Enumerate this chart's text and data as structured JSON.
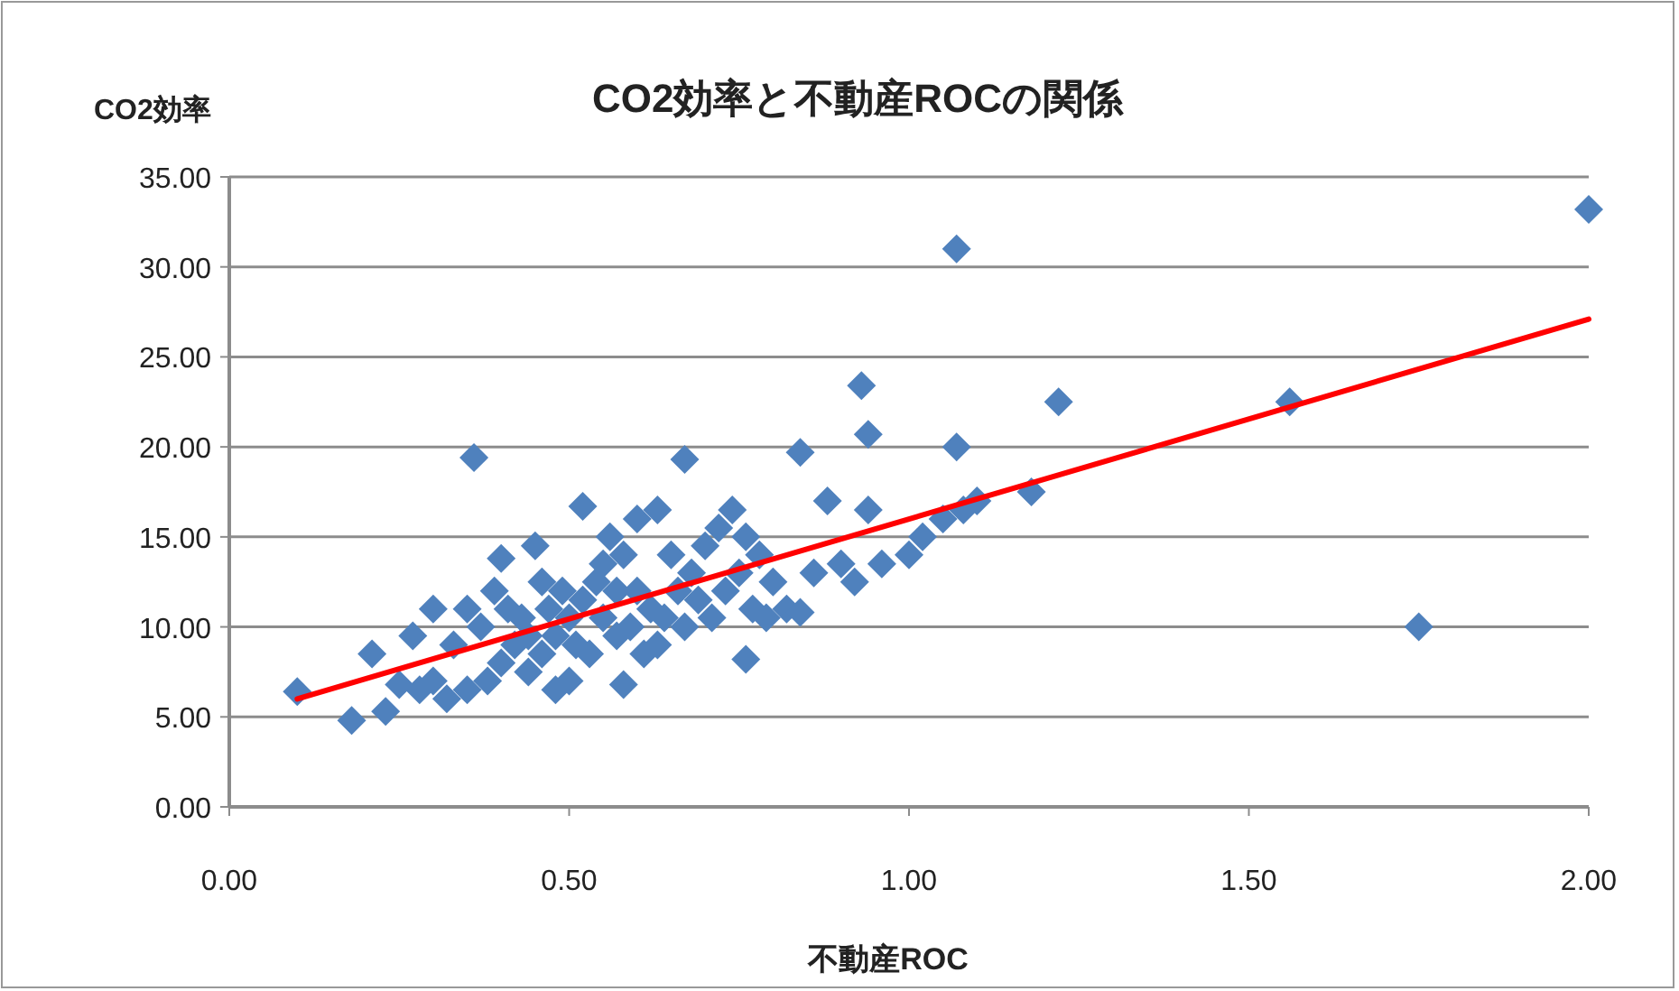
{
  "chart_data": {
    "type": "scatter",
    "title": "CO2効率と不動産ROCの関係",
    "xlabel": "不動産ROC",
    "ylabel": "CO2効率",
    "xlim": [
      0,
      2
    ],
    "ylim": [
      0,
      35
    ],
    "grid": "y",
    "xticks": [
      {
        "value": 0,
        "label": "0.00"
      },
      {
        "value": 0.5,
        "label": "0.50"
      },
      {
        "value": 1,
        "label": "1.00"
      },
      {
        "value": 1.5,
        "label": "1.50"
      },
      {
        "value": 2,
        "label": "2.00"
      }
    ],
    "yticks": [
      {
        "value": 0,
        "label": "0.00"
      },
      {
        "value": 5,
        "label": "5.00"
      },
      {
        "value": 10,
        "label": "10.00"
      },
      {
        "value": 15,
        "label": "15.00"
      },
      {
        "value": 20,
        "label": "20.00"
      },
      {
        "value": 25,
        "label": "25.00"
      },
      {
        "value": 30,
        "label": "30.00"
      },
      {
        "value": 35,
        "label": "35.00"
      }
    ],
    "series": [
      {
        "color": "#4f81bd",
        "marker": "diamond",
        "x": [
          2.0,
          1.07,
          1.75,
          1.56,
          1.22,
          0.93,
          0.94,
          1.07,
          0.84,
          0.36,
          0.67,
          1.18,
          0.1,
          0.18,
          0.21,
          0.23,
          0.27,
          0.3,
          0.76,
          0.58,
          0.32,
          0.35,
          0.38,
          0.4,
          0.42,
          0.44,
          0.46,
          0.48,
          0.5,
          0.52,
          0.54,
          0.55,
          0.52,
          0.56,
          0.58,
          0.6,
          0.62,
          0.64,
          0.66,
          0.68,
          0.7,
          0.72,
          0.74,
          0.76,
          0.78,
          0.8,
          0.82,
          0.84,
          0.86,
          0.88,
          0.9,
          0.92,
          0.94,
          0.96,
          1.0,
          1.02,
          1.05,
          1.08,
          1.1,
          0.6,
          0.63,
          0.65,
          0.45,
          0.4,
          0.35,
          0.33,
          0.37,
          0.3,
          0.28,
          0.25,
          0.43,
          0.47,
          0.49,
          0.51,
          0.53,
          0.57,
          0.59,
          0.61,
          0.63,
          0.67,
          0.69,
          0.71,
          0.73,
          0.75,
          0.77,
          0.79,
          0.46,
          0.5,
          0.48,
          0.55,
          0.57,
          0.39,
          0.41,
          0.44
        ],
        "values": [
          33.2,
          31.0,
          10.0,
          22.5,
          22.5,
          23.4,
          20.7,
          20.0,
          19.7,
          19.4,
          19.3,
          17.5,
          6.4,
          4.8,
          8.5,
          5.3,
          9.5,
          11.0,
          8.2,
          6.8,
          6.0,
          6.5,
          7.0,
          8.0,
          9.0,
          7.5,
          8.5,
          9.5,
          10.5,
          11.5,
          12.5,
          13.5,
          16.7,
          15.0,
          14.0,
          12.0,
          11.0,
          10.5,
          12.0,
          13.0,
          14.5,
          15.5,
          16.5,
          15.0,
          14.0,
          12.5,
          11.0,
          10.8,
          13.0,
          17.0,
          13.5,
          12.5,
          16.5,
          13.5,
          14.0,
          15.0,
          16.0,
          16.5,
          17.0,
          16.0,
          16.5,
          14.0,
          14.5,
          13.8,
          11.0,
          9.0,
          10.0,
          7.0,
          6.5,
          6.8,
          10.5,
          11.0,
          12.0,
          9.0,
          8.5,
          9.5,
          10.0,
          8.5,
          9.0,
          10.0,
          11.5,
          10.5,
          12.0,
          13.0,
          11.0,
          10.5,
          12.5,
          7.0,
          6.5,
          10.5,
          12.0,
          12.0,
          11.0,
          9.5
        ]
      },
      {
        "type": "line",
        "color": "#ff0000",
        "marker": "none",
        "x": [
          0.1,
          2.0
        ],
        "values": [
          6.0,
          27.1
        ]
      }
    ]
  }
}
